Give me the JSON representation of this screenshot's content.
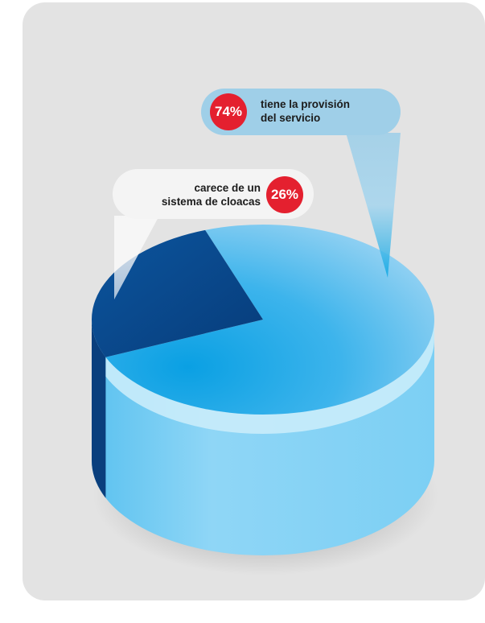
{
  "chart_data": {
    "type": "pie",
    "slices": [
      {
        "value": 74,
        "label": "74%",
        "text_lines": [
          "tiene la provisión",
          "del servicio"
        ],
        "color": "#1aa6e6"
      },
      {
        "value": 26,
        "label": "26%",
        "text_lines": [
          "carece de un",
          "sistema de cloacas"
        ],
        "color": "#0b4d93"
      }
    ],
    "style": "3d-cylinder",
    "legend": "callouts",
    "colors": {
      "badge": "#e4202f",
      "panel": "#e3e3e3",
      "side_light": "#8dd5f5",
      "side_dark": "#0a3f7d"
    }
  }
}
